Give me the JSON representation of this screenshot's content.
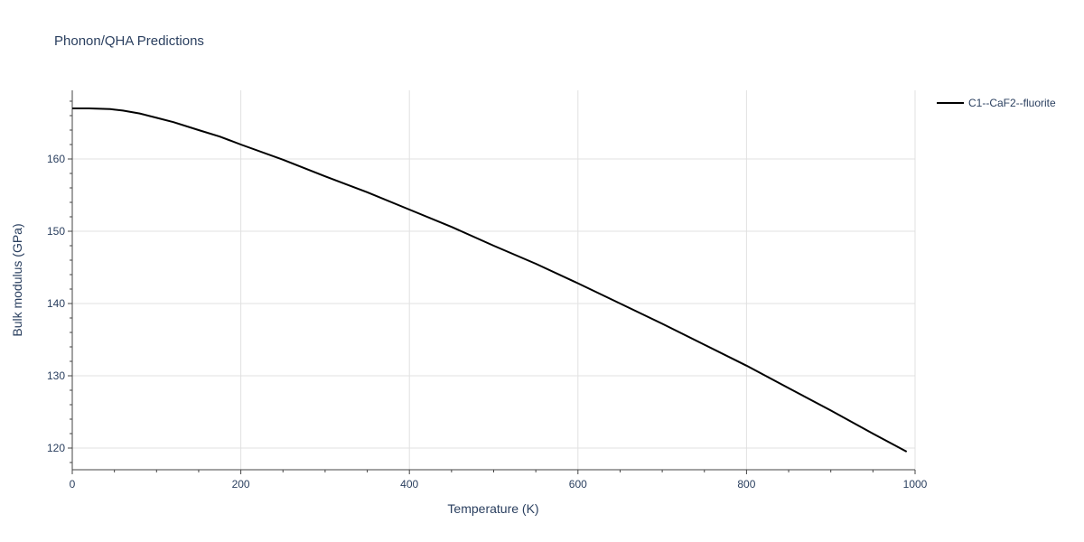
{
  "chart_data": {
    "type": "line",
    "title": "Phonon/QHA Predictions",
    "xlabel": "Temperature (K)",
    "ylabel": "Bulk modulus (GPa)",
    "xlim": [
      0,
      1000
    ],
    "ylim": [
      117,
      169.5
    ],
    "x_ticks": [
      0,
      200,
      400,
      600,
      800,
      1000
    ],
    "y_ticks": [
      120,
      130,
      140,
      150,
      160
    ],
    "x_tick_labels": [
      "0",
      "200",
      "400",
      "600",
      "800",
      "1000"
    ],
    "y_tick_labels": [
      "120",
      "130",
      "140",
      "150",
      "160"
    ],
    "grid": true,
    "legend_position": "top-right",
    "series": [
      {
        "name": "C1--CaF2--fluorite",
        "color": "#000000",
        "x": [
          0,
          20,
          45,
          60,
          80,
          100,
          120,
          150,
          175,
          200,
          250,
          300,
          350,
          400,
          450,
          500,
          550,
          600,
          650,
          700,
          750,
          800,
          850,
          900,
          950,
          990
        ],
        "y": [
          167.0,
          167.0,
          166.9,
          166.7,
          166.3,
          165.7,
          165.1,
          164.0,
          163.1,
          162.0,
          159.9,
          157.6,
          155.4,
          153.0,
          150.6,
          148.0,
          145.5,
          142.8,
          140.0,
          137.2,
          134.3,
          131.4,
          128.3,
          125.2,
          122.0,
          119.5
        ]
      }
    ]
  }
}
